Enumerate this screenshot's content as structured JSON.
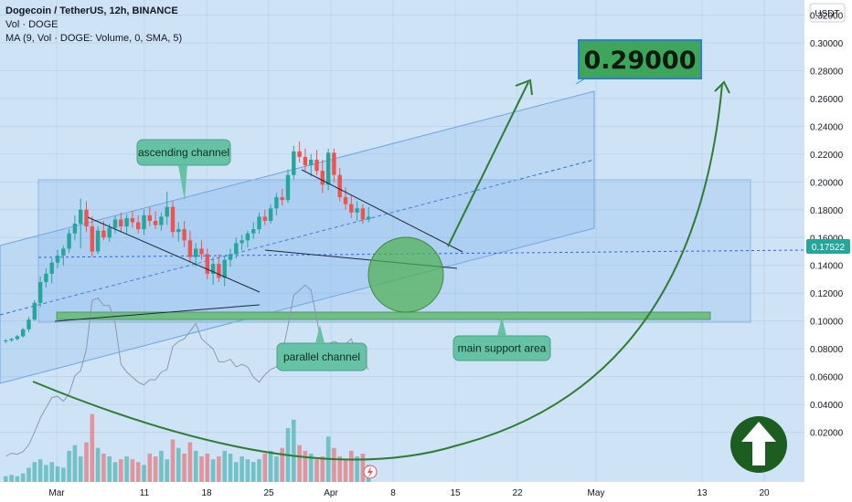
{
  "header": {
    "symbol_line": "Dogecoin / TetherUS, 12h, BINANCE",
    "vol_line": "Vol · DOGE",
    "ma_line": "MA (9, Vol · DOGE: Volume, 0, SMA, 5)"
  },
  "colors": {
    "background": "#cfe3f7",
    "up": "#26a69a",
    "down": "#ef5350",
    "channel": "#7fb2ea",
    "trend_arrow": "#2e7d32",
    "callout_bg": "#66c2a5",
    "target_bg": "#3da65a",
    "support": "#6fbf83"
  },
  "chart_data": {
    "type": "candlestick",
    "title": "Dogecoin / TetherUS, 12h, BINANCE",
    "currency": "USDT",
    "last_price": "0.17522",
    "ylim": [
      0,
      0.34
    ],
    "y_ticks": [
      "0.32000",
      "0.30000",
      "0.28000",
      "0.26000",
      "0.24000",
      "0.22000",
      "0.20000",
      "0.18000",
      "0.16000",
      "0.14000",
      "0.12000",
      "0.10000",
      "0.08000",
      "0.06000",
      "0.04000",
      "0.02000"
    ],
    "x_ticks": [
      "Mar",
      "11",
      "18",
      "25",
      "Apr",
      "8",
      "15",
      "22",
      "May",
      "13",
      "20"
    ],
    "ohlc": [
      [
        0.086,
        0.087,
        0.084,
        0.086
      ],
      [
        0.086,
        0.088,
        0.085,
        0.087
      ],
      [
        0.087,
        0.09,
        0.086,
        0.089
      ],
      [
        0.089,
        0.095,
        0.088,
        0.094
      ],
      [
        0.094,
        0.103,
        0.092,
        0.101
      ],
      [
        0.101,
        0.115,
        0.1,
        0.113
      ],
      [
        0.113,
        0.132,
        0.11,
        0.128
      ],
      [
        0.128,
        0.138,
        0.124,
        0.134
      ],
      [
        0.134,
        0.145,
        0.127,
        0.142
      ],
      [
        0.142,
        0.151,
        0.138,
        0.147
      ],
      [
        0.147,
        0.154,
        0.14,
        0.152
      ],
      [
        0.152,
        0.166,
        0.149,
        0.163
      ],
      [
        0.163,
        0.176,
        0.158,
        0.17
      ],
      [
        0.17,
        0.188,
        0.152,
        0.18
      ],
      [
        0.18,
        0.186,
        0.164,
        0.168
      ],
      [
        0.168,
        0.175,
        0.146,
        0.15
      ],
      [
        0.15,
        0.168,
        0.148,
        0.165
      ],
      [
        0.165,
        0.172,
        0.158,
        0.16
      ],
      [
        0.16,
        0.17,
        0.157,
        0.167
      ],
      [
        0.167,
        0.176,
        0.163,
        0.173
      ],
      [
        0.173,
        0.178,
        0.164,
        0.168
      ],
      [
        0.168,
        0.177,
        0.163,
        0.174
      ],
      [
        0.174,
        0.179,
        0.167,
        0.171
      ],
      [
        0.171,
        0.176,
        0.163,
        0.166
      ],
      [
        0.166,
        0.18,
        0.162,
        0.176
      ],
      [
        0.176,
        0.182,
        0.168,
        0.172
      ],
      [
        0.172,
        0.179,
        0.166,
        0.169
      ],
      [
        0.169,
        0.178,
        0.165,
        0.175
      ],
      [
        0.175,
        0.193,
        0.169,
        0.182
      ],
      [
        0.182,
        0.186,
        0.16,
        0.164
      ],
      [
        0.164,
        0.171,
        0.157,
        0.166
      ],
      [
        0.166,
        0.172,
        0.153,
        0.158
      ],
      [
        0.158,
        0.165,
        0.142,
        0.146
      ],
      [
        0.146,
        0.156,
        0.139,
        0.152
      ],
      [
        0.152,
        0.158,
        0.144,
        0.148
      ],
      [
        0.148,
        0.152,
        0.13,
        0.134
      ],
      [
        0.134,
        0.146,
        0.126,
        0.141
      ],
      [
        0.141,
        0.148,
        0.128,
        0.131
      ],
      [
        0.131,
        0.147,
        0.125,
        0.144
      ],
      [
        0.144,
        0.152,
        0.139,
        0.148
      ],
      [
        0.148,
        0.16,
        0.145,
        0.156
      ],
      [
        0.156,
        0.162,
        0.151,
        0.158
      ],
      [
        0.158,
        0.165,
        0.153,
        0.163
      ],
      [
        0.163,
        0.171,
        0.159,
        0.166
      ],
      [
        0.166,
        0.178,
        0.163,
        0.175
      ],
      [
        0.175,
        0.18,
        0.169,
        0.172
      ],
      [
        0.172,
        0.184,
        0.17,
        0.181
      ],
      [
        0.181,
        0.192,
        0.176,
        0.189
      ],
      [
        0.189,
        0.195,
        0.183,
        0.187
      ],
      [
        0.187,
        0.209,
        0.185,
        0.205
      ],
      [
        0.205,
        0.226,
        0.202,
        0.222
      ],
      [
        0.222,
        0.229,
        0.214,
        0.218
      ],
      [
        0.218,
        0.224,
        0.208,
        0.212
      ],
      [
        0.212,
        0.22,
        0.204,
        0.216
      ],
      [
        0.216,
        0.223,
        0.205,
        0.208
      ],
      [
        0.208,
        0.216,
        0.192,
        0.198
      ],
      [
        0.198,
        0.224,
        0.194,
        0.221
      ],
      [
        0.221,
        0.224,
        0.2,
        0.205
      ],
      [
        0.205,
        0.21,
        0.186,
        0.189
      ],
      [
        0.189,
        0.196,
        0.18,
        0.184
      ],
      [
        0.184,
        0.19,
        0.174,
        0.178
      ],
      [
        0.178,
        0.186,
        0.172,
        0.181
      ],
      [
        0.181,
        0.184,
        0.17,
        0.173
      ],
      [
        0.173,
        0.182,
        0.171,
        0.175
      ]
    ],
    "volume": [
      4,
      5,
      4,
      6,
      10,
      14,
      16,
      12,
      14,
      11,
      10,
      22,
      26,
      18,
      28,
      48,
      24,
      20,
      18,
      14,
      16,
      18,
      16,
      14,
      12,
      20,
      18,
      22,
      16,
      30,
      24,
      20,
      28,
      22,
      18,
      20,
      16,
      18,
      22,
      20,
      14,
      18,
      16,
      14,
      16,
      20,
      22,
      18,
      24,
      38,
      44,
      26,
      22,
      20,
      16,
      18,
      32,
      24,
      18,
      16,
      22,
      18,
      20,
      12
    ],
    "annotations": {
      "ascending_channel": "ascending channel",
      "parallel_channel": "parallel channel",
      "main_support_area": "main support area",
      "target": "0.29000"
    }
  }
}
